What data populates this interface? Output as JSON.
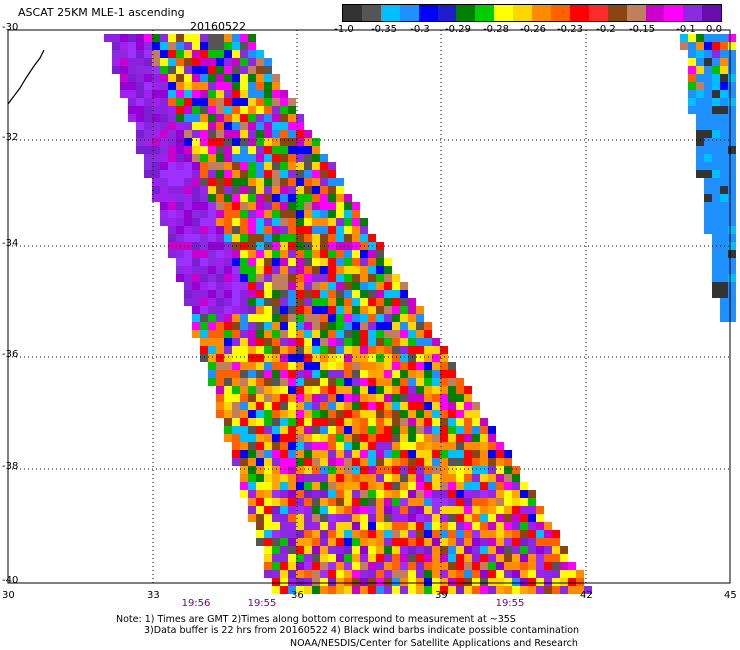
{
  "header": {
    "title": "ASCAT 25KM MLE-1 ascending",
    "date": "20160522"
  },
  "colorbar": {
    "colors": [
      "#333333",
      "#555555",
      "#00bfff",
      "#1e90ff",
      "#0000ff",
      "#1e1ecc",
      "#008000",
      "#00cc00",
      "#ffff00",
      "#ffd700",
      "#ff8c00",
      "#ff6000",
      "#ff0000",
      "#ff2a2a",
      "#8b4513",
      "#c08060",
      "#cc00cc",
      "#ff00ff",
      "#8a2be2",
      "#6a0dad"
    ],
    "labels": [
      "-1.0",
      "-0.35",
      "-0.3",
      "-0.29",
      "-0.28",
      "-0.26",
      "-0.23",
      "-0.2",
      "-0.15",
      "-0.1",
      "0.0"
    ]
  },
  "map": {
    "lat_labels": [
      "-30",
      "-32",
      "-34",
      "-36",
      "-38",
      "-40"
    ],
    "lon_labels": [
      "30",
      "33",
      "36",
      "39",
      "42",
      "45"
    ],
    "time_labels": [
      "19:56",
      "19:55",
      "19:55"
    ]
  },
  "notes": {
    "line1": "Note: 1) Times are GMT 2)Times along bottom correspond to measurement at ~35S",
    "line2": "3)Data buffer is 22 hrs from 20160522 4) Black wind barbs indicate possible contamination",
    "credit": "NOAA/NESDIS/Center for Satellite Applications and Research"
  }
}
